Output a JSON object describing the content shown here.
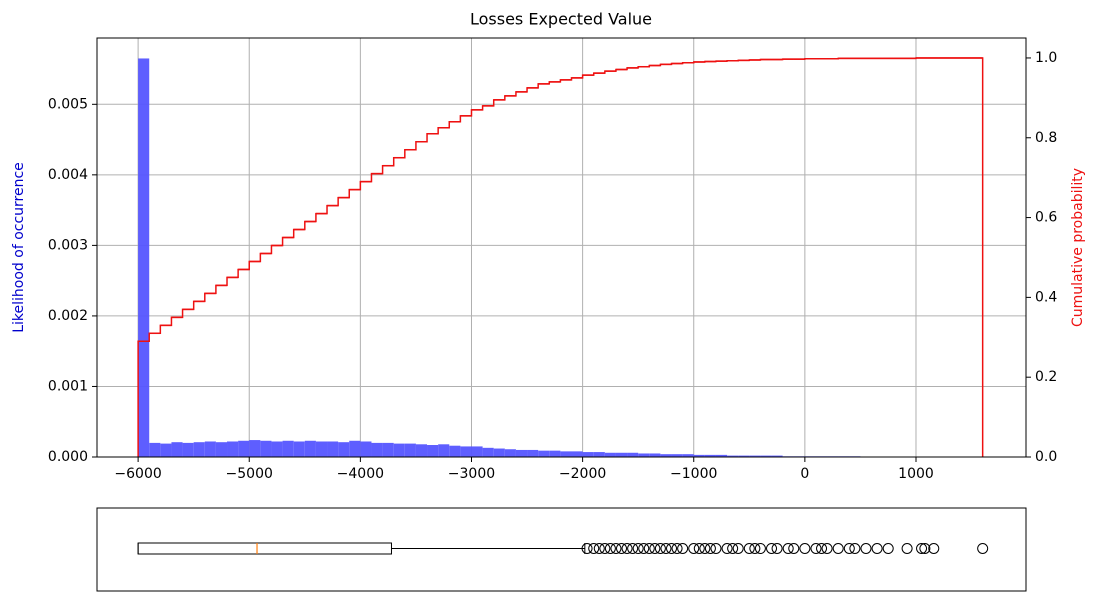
{
  "chart_data": [
    {
      "type": "histogram",
      "title": "Losses Expected Value",
      "ylabel": "Likelihood of occurrence",
      "ylabel_color": "#0000cc",
      "y2label": "Cumulative probability",
      "y2label_color": "#ee1111",
      "bins": [
        -6000,
        -5900,
        -5800,
        -5700,
        -5600,
        -5500,
        -5400,
        -5300,
        -5200,
        -5100,
        -5000,
        -4900,
        -4800,
        -4700,
        -4600,
        -4500,
        -4400,
        -4300,
        -4200,
        -4100,
        -4000,
        -3900,
        -3800,
        -3700,
        -3600,
        -3500,
        -3400,
        -3300,
        -3200,
        -3100,
        -3000,
        -2900,
        -2800,
        -2700,
        -2600,
        -2500,
        -2400,
        -2300,
        -2200,
        -2100,
        -2000,
        -1900,
        -1800,
        -1700,
        -1600,
        -1500,
        -1400,
        -1300,
        -1200,
        -1100,
        -1000,
        -900,
        -800,
        -700,
        -600,
        -500,
        -400,
        -300,
        -200,
        -100,
        0,
        100,
        200,
        300,
        400,
        500,
        600,
        700,
        800,
        900,
        1000,
        1100,
        1200,
        1300,
        1400,
        1500,
        1600
      ],
      "values": [
        0.00565,
        0.0002,
        0.00019,
        0.00021,
        0.0002,
        0.00021,
        0.00022,
        0.00021,
        0.00022,
        0.00023,
        0.00024,
        0.00023,
        0.00022,
        0.00023,
        0.00022,
        0.00023,
        0.00022,
        0.00022,
        0.00021,
        0.00023,
        0.00022,
        0.0002,
        0.0002,
        0.00019,
        0.00019,
        0.00018,
        0.00017,
        0.00018,
        0.00016,
        0.00015,
        0.00015,
        0.00013,
        0.00012,
        0.00011,
        0.0001,
        0.0001,
        9e-05,
        9e-05,
        8e-05,
        8e-05,
        7e-05,
        7e-05,
        6e-05,
        6e-05,
        6e-05,
        5e-05,
        5e-05,
        4e-05,
        4e-05,
        4e-05,
        3e-05,
        3e-05,
        3e-05,
        2e-05,
        2e-05,
        2e-05,
        2e-05,
        2e-05,
        1e-05,
        1e-05,
        1e-05,
        1e-05,
        1e-05,
        1e-05,
        1e-05,
        5e-06,
        5e-06,
        5e-06,
        5e-06,
        5e-06,
        3e-06,
        3e-06,
        3e-06,
        3e-06,
        3e-06,
        3e-06
      ],
      "color": "#5555ff",
      "cumulative": {
        "axis": "y2",
        "color": "#ee1111",
        "values": [
          0.29,
          0.31,
          0.33,
          0.35,
          0.37,
          0.39,
          0.41,
          0.43,
          0.45,
          0.47,
          0.49,
          0.51,
          0.53,
          0.55,
          0.57,
          0.59,
          0.61,
          0.63,
          0.65,
          0.67,
          0.69,
          0.71,
          0.73,
          0.75,
          0.77,
          0.79,
          0.81,
          0.825,
          0.84,
          0.855,
          0.87,
          0.88,
          0.895,
          0.905,
          0.915,
          0.925,
          0.935,
          0.94,
          0.945,
          0.95,
          0.957,
          0.962,
          0.967,
          0.971,
          0.975,
          0.978,
          0.981,
          0.984,
          0.986,
          0.988,
          0.99,
          0.991,
          0.992,
          0.993,
          0.994,
          0.995,
          0.996,
          0.996,
          0.997,
          0.997,
          0.998,
          0.998,
          0.998,
          0.999,
          0.999,
          0.999,
          0.999,
          0.999,
          0.999,
          0.999,
          1.0,
          1.0,
          1.0,
          1.0,
          1.0,
          1.0
        ]
      },
      "xlim": [
        -6370,
        1990
      ],
      "xticks": [
        {
          "value": -6000,
          "label": "−6000"
        },
        {
          "value": -5000,
          "label": "−5000"
        },
        {
          "value": -4000,
          "label": "−4000"
        },
        {
          "value": -3000,
          "label": "−3000"
        },
        {
          "value": -2000,
          "label": "−2000"
        },
        {
          "value": -1000,
          "label": "−1000"
        },
        0,
        1000
      ],
      "ylim": [
        0,
        0.00594
      ],
      "yticks": [
        {
          "value": 0,
          "label": "0.000"
        },
        0.001,
        0.002,
        0.003,
        0.004,
        0.005
      ],
      "y2lim": [
        0,
        1.05
      ],
      "y2ticks": [
        {
          "value": 0,
          "label": "0.0"
        },
        0.2,
        0.4,
        0.6,
        0.8,
        {
          "value": 1,
          "label": "1.0"
        }
      ],
      "grid": true
    },
    {
      "type": "boxplot",
      "xlim": [
        -6370,
        1990
      ],
      "whislo": -6000,
      "q1": -6000,
      "med": -4930,
      "q3": -3720,
      "whishi": -1980,
      "median_color": "#ff7f0e",
      "fliers": [
        -1960,
        -1900,
        -1850,
        -1800,
        -1750,
        -1700,
        -1650,
        -1600,
        -1550,
        -1500,
        -1450,
        -1400,
        -1350,
        -1300,
        -1250,
        -1200,
        -1150,
        -1100,
        -1000,
        -950,
        -900,
        -850,
        -800,
        -700,
        -650,
        -600,
        -500,
        -450,
        -400,
        -300,
        -250,
        -150,
        -100,
        0,
        100,
        150,
        200,
        300,
        400,
        450,
        550,
        650,
        750,
        920,
        1050,
        1080,
        1160,
        1600
      ]
    }
  ]
}
